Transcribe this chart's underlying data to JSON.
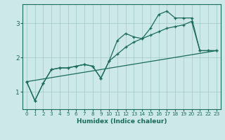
{
  "xlabel": "Humidex (Indice chaleur)",
  "bg_color": "#cce8e8",
  "line_color": "#1a6b5a",
  "grid_color": "#a8cccc",
  "series1_x": [
    0,
    1,
    2,
    3,
    4,
    5,
    6,
    7,
    8,
    9,
    10,
    11,
    12,
    13,
    14,
    15,
    16,
    17,
    18,
    19,
    20,
    21,
    22,
    23
  ],
  "series1_y": [
    1.3,
    0.75,
    1.25,
    1.65,
    1.7,
    1.7,
    1.75,
    1.8,
    1.75,
    1.4,
    1.9,
    2.5,
    2.7,
    2.6,
    2.55,
    2.85,
    3.25,
    3.35,
    3.15,
    3.15,
    3.15,
    2.2,
    2.2,
    2.2
  ],
  "series2_x": [
    0,
    1,
    2,
    3,
    4,
    5,
    6,
    7,
    8,
    9,
    10,
    11,
    12,
    13,
    14,
    15,
    16,
    17,
    18,
    19,
    20,
    21,
    22,
    23
  ],
  "series2_y": [
    1.3,
    0.75,
    1.25,
    1.65,
    1.7,
    1.7,
    1.75,
    1.8,
    1.75,
    1.4,
    1.9,
    2.1,
    2.3,
    2.45,
    2.55,
    2.65,
    2.75,
    2.85,
    2.9,
    2.95,
    3.05,
    2.2,
    2.2,
    2.2
  ],
  "series3_x": [
    0,
    23
  ],
  "series3_y": [
    1.3,
    2.2
  ],
  "ylim": [
    0.5,
    3.55
  ],
  "xlim": [
    -0.5,
    23.5
  ],
  "yticks": [
    1,
    2,
    3
  ],
  "xticks": [
    0,
    1,
    2,
    3,
    4,
    5,
    6,
    7,
    8,
    9,
    10,
    11,
    12,
    13,
    14,
    15,
    16,
    17,
    18,
    19,
    20,
    21,
    22,
    23
  ]
}
